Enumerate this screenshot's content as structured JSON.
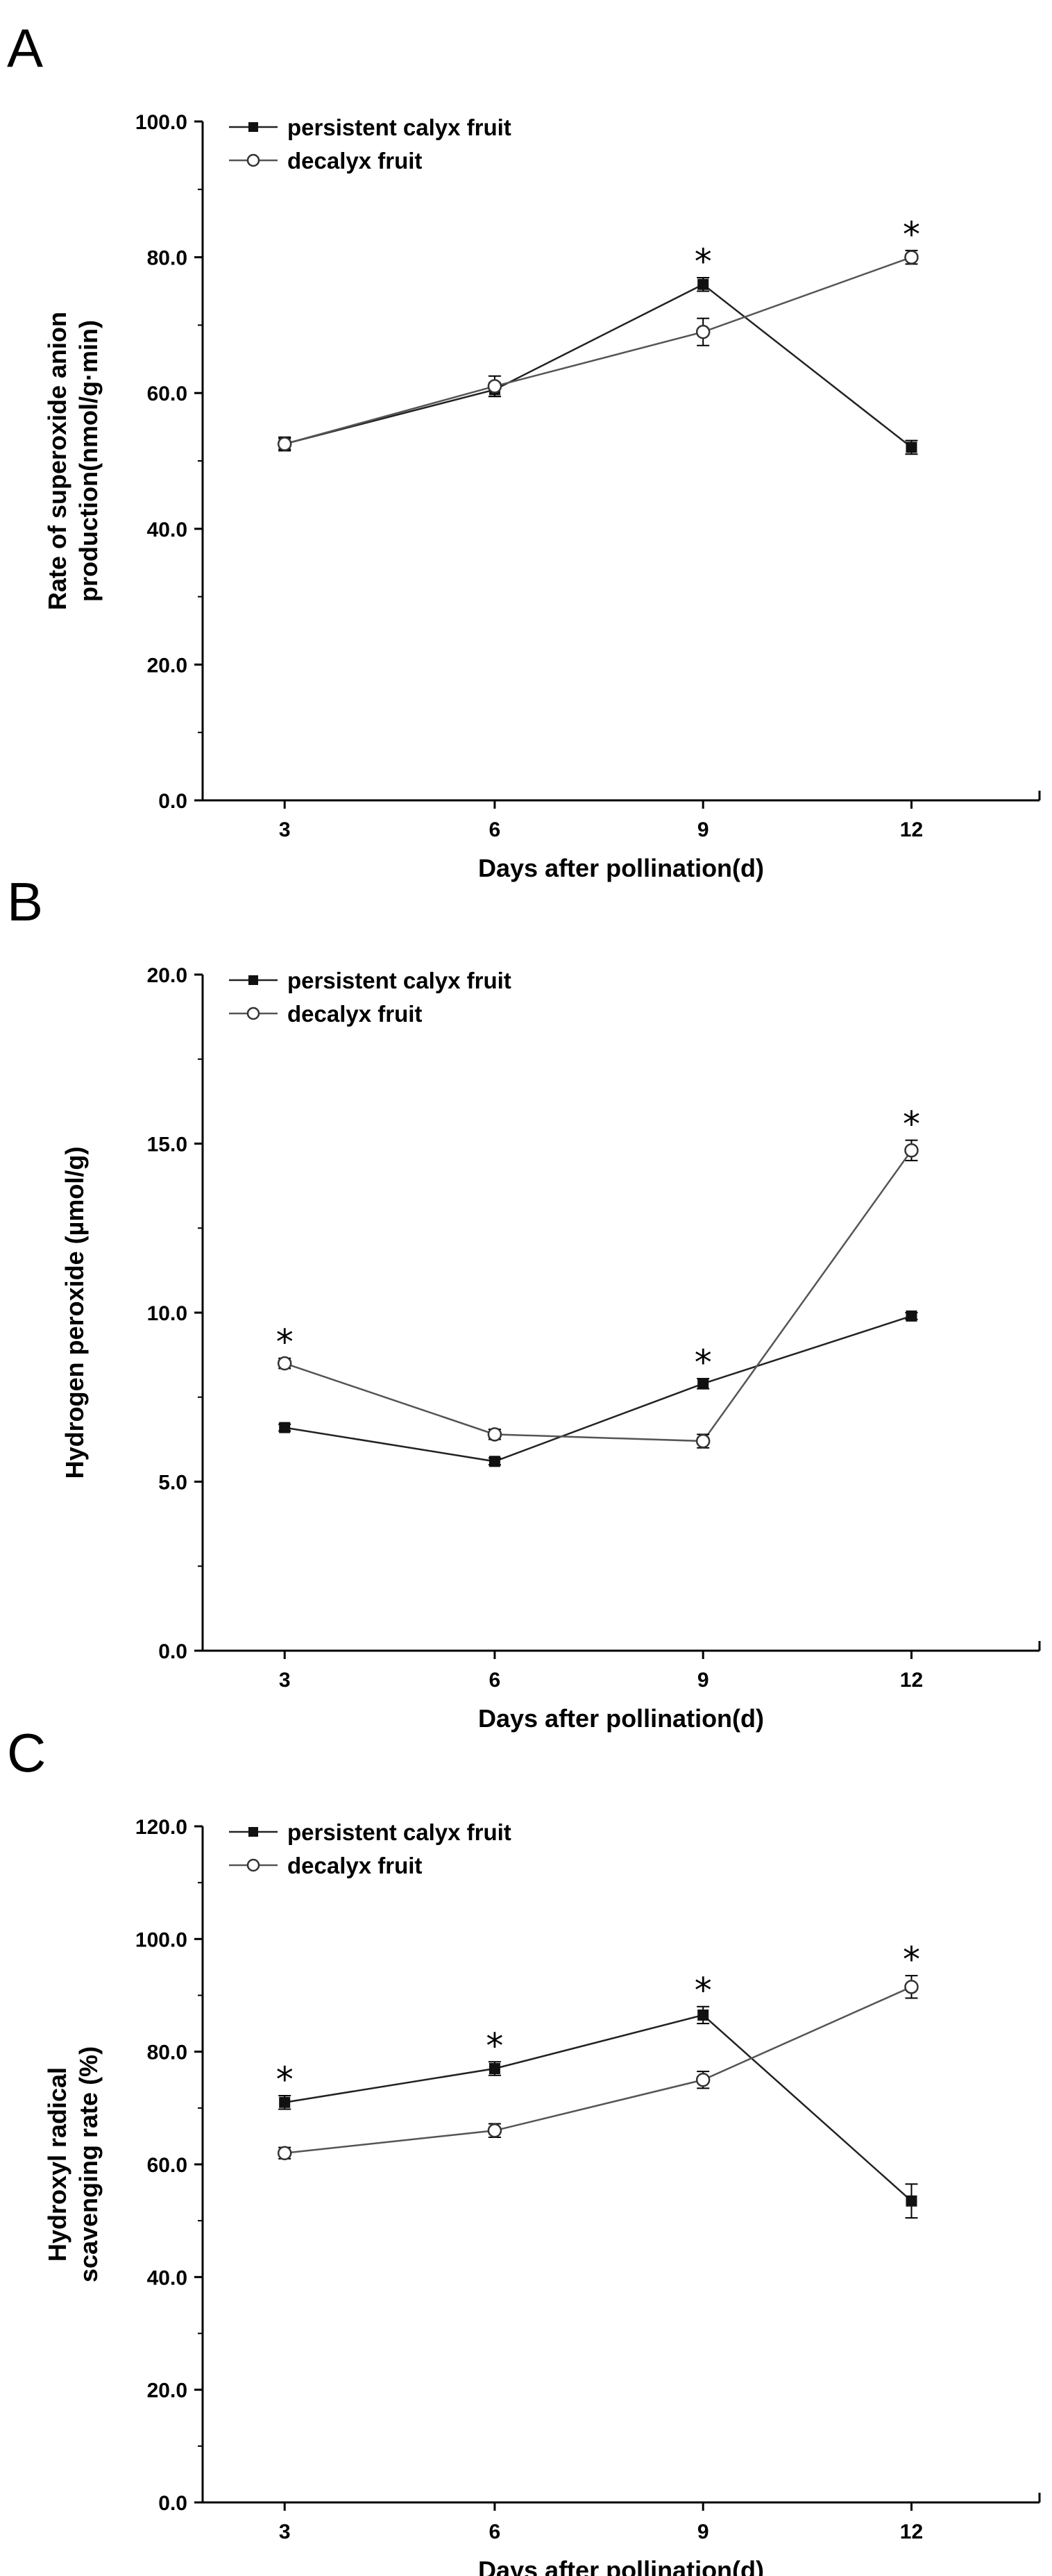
{
  "chart_data": [
    {
      "panel": "A",
      "type": "line",
      "title": "",
      "xlabel": "Days after pollination(d)",
      "ylabel": [
        "Rate of superoxide anion",
        "production(nmol/g·min)"
      ],
      "categories": [
        "3",
        "6",
        "9",
        "12"
      ],
      "ylim": [
        0,
        100
      ],
      "yticks": [
        "0.0",
        "20.0",
        "40.0",
        "60.0",
        "80.0",
        "100.0"
      ],
      "series": [
        {
          "name": "persistent calyx fruit",
          "marker": "filled-square",
          "values": [
            52.5,
            60.5,
            76.0,
            52.0
          ],
          "errors": [
            0.8,
            1.0,
            1.0,
            1.0
          ]
        },
        {
          "name": "decalyx fruit",
          "marker": "open-circle",
          "values": [
            52.5,
            61.0,
            69.0,
            80.0
          ],
          "errors": [
            1.0,
            1.5,
            2.0,
            1.0
          ]
        }
      ],
      "significance": [
        {
          "x": "9",
          "label": "*"
        },
        {
          "x": "12",
          "label": "*"
        }
      ]
    },
    {
      "panel": "B",
      "type": "line",
      "title": "",
      "xlabel": "Days after pollination(d)",
      "ylabel": [
        "Hydrogen peroxide (µmol/g)"
      ],
      "categories": [
        "3",
        "6",
        "9",
        "12"
      ],
      "ylim": [
        0,
        20
      ],
      "yticks": [
        "0.0",
        "5.0",
        "10.0",
        "15.0",
        "20.0"
      ],
      "series": [
        {
          "name": "persistent calyx fruit",
          "marker": "filled-square",
          "values": [
            6.6,
            5.6,
            7.9,
            9.9
          ],
          "errors": [
            0.1,
            0.1,
            0.15,
            0.1
          ]
        },
        {
          "name": "decalyx fruit",
          "marker": "open-circle",
          "values": [
            8.5,
            6.4,
            6.2,
            14.8
          ],
          "errors": [
            0.15,
            0.15,
            0.2,
            0.3
          ]
        }
      ],
      "significance": [
        {
          "x": "3",
          "label": "*"
        },
        {
          "x": "9",
          "label": "*"
        },
        {
          "x": "12",
          "label": "*"
        }
      ]
    },
    {
      "panel": "C",
      "type": "line",
      "title": "",
      "xlabel": "Days after pollination(d)",
      "ylabel": [
        "Hydroxyl radical",
        "scavenging rate (%)"
      ],
      "categories": [
        "3",
        "6",
        "9",
        "12"
      ],
      "ylim": [
        0,
        120
      ],
      "yticks": [
        "0.0",
        "20.0",
        "40.0",
        "60.0",
        "80.0",
        "100.0",
        "120.0"
      ],
      "series": [
        {
          "name": "persistent calyx fruit",
          "marker": "filled-square",
          "values": [
            71.0,
            77.0,
            86.5,
            53.5
          ],
          "errors": [
            1.2,
            1.2,
            1.5,
            3.0
          ]
        },
        {
          "name": "decalyx fruit",
          "marker": "open-circle",
          "values": [
            62.0,
            66.0,
            75.0,
            91.5
          ],
          "errors": [
            1.0,
            1.2,
            1.5,
            2.0
          ]
        }
      ],
      "significance": [
        {
          "x": "3",
          "label": "*"
        },
        {
          "x": "6",
          "label": "*"
        },
        {
          "x": "9",
          "label": "*"
        },
        {
          "x": "12",
          "label": "*"
        }
      ]
    }
  ]
}
